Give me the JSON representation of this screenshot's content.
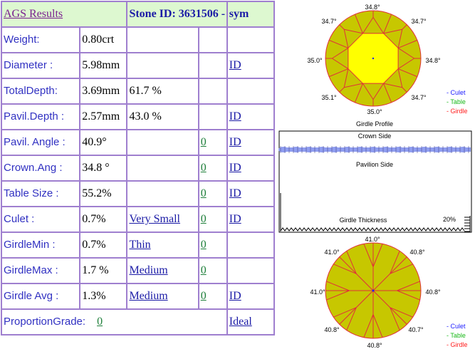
{
  "header": {
    "title": "AGS Results",
    "stone_id": "Stone ID:  3631506 -",
    "sym": "sym"
  },
  "rows": [
    {
      "label": "Weight:",
      "value": "0.80crt",
      "pct": "",
      "grade": "",
      "grade_link": false,
      "code": "",
      "sym": ""
    },
    {
      "label": "Diameter :",
      "value": "5.98mm",
      "pct": "",
      "grade": "",
      "grade_link": false,
      "code": "",
      "sym": "ID"
    },
    {
      "label": "TotalDepth:",
      "value": "3.69mm",
      "pct": "61.7 %",
      "grade": "",
      "grade_link": false,
      "code": "",
      "sym": ""
    },
    {
      "label": "Pavil.Depth :",
      "value": "2.57mm",
      "pct": "43.0 %",
      "grade": "",
      "grade_link": false,
      "code": "",
      "sym": "ID"
    },
    {
      "label": "Pavil. Angle :",
      "value": "40.9°",
      "pct": "",
      "grade": "",
      "grade_link": false,
      "code": "0",
      "sym": "ID "
    },
    {
      "label": "Crown.Ang :",
      "value": "34.8 °",
      "pct": "",
      "grade": "",
      "grade_link": false,
      "code": "0",
      "sym": "ID"
    },
    {
      "label": "Table Size :",
      "value": "55.2%",
      "pct": "",
      "grade": "",
      "grade_link": false,
      "code": "0",
      "sym": "ID"
    },
    {
      "label": "Culet :",
      "value": "0.7%",
      "pct": "",
      "grade": "Very Small",
      "grade_link": true,
      "code": "0",
      "sym": "ID"
    },
    {
      "label": "GirdleMin :",
      "value": "0.7%",
      "pct": "",
      "grade": "Thin",
      "grade_link": true,
      "code": "0",
      "sym": ""
    },
    {
      "label": "GirdleMax :",
      "value": "1.7 %",
      "pct": "",
      "grade": "Medium ",
      "grade_link": true,
      "code": "0",
      "sym": ""
    },
    {
      "label": "Girdle Avg :",
      "value": "1.3%",
      "pct": "",
      "grade": "Medium",
      "grade_link": true,
      "code": "0",
      "sym": "ID "
    }
  ],
  "proportion": {
    "label": "ProportionGrade:",
    "code": "0",
    "grade": "Ideal "
  },
  "crown": {
    "angles": {
      "top": "34.8°",
      "top_left": "34.7°",
      "top_right": "34.7°",
      "left": "35.0°",
      "right": "34.8°",
      "bottom_left": "35.1°",
      "bottom_right": "34.7°",
      "bottom": "35.0°"
    },
    "legend": {
      "culet": "- Culet",
      "table": "- Table",
      "girdle": "- Girdle"
    }
  },
  "profile": {
    "title": "Girdle Profile",
    "crown_side": "Crown Side",
    "pavilion_side": "Pavilion Side",
    "thickness": "Girdle Thickness",
    "percent": "20%"
  },
  "pavilion": {
    "angles": {
      "top": "41.0°",
      "top_left": "41.0°",
      "top_right": "40.8°",
      "left": "41.0°",
      "right": "40.8°",
      "bottom_left": "40.8°",
      "bottom_right": "40.7°",
      "bottom": "40.8°"
    },
    "legend": {
      "culet": "- Culet",
      "table": "- Table",
      "girdle": "- Girdle"
    }
  },
  "colors": {
    "border": "#9f7fcf",
    "header_bg": "#ddf8d0",
    "label": "#3131c2",
    "gem_fill": "#c7c700",
    "table_fill": "#ffff00",
    "facet_line": "#e0303a",
    "girdle_band": "#8f9df0",
    "culet": "#2020ff",
    "table_green": "#18b818",
    "girdle_red": "#ff2020"
  }
}
